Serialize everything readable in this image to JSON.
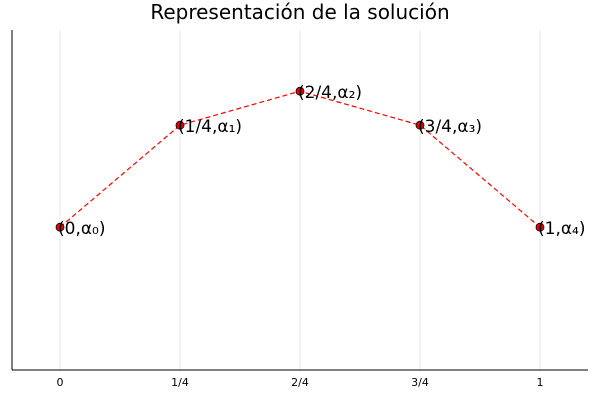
{
  "chart_data": {
    "type": "line",
    "title": "Representación de la solución",
    "xlabel": "",
    "ylabel": "",
    "x_ticks": [
      "0",
      "1/4",
      "2/4",
      "3/4",
      "1"
    ],
    "x": [
      0,
      0.25,
      0.5,
      0.75,
      1
    ],
    "y": [
      0.42,
      0.72,
      0.82,
      0.72,
      0.42
    ],
    "xlim": [
      -0.1,
      1.1
    ],
    "ylim": [
      0,
      1
    ],
    "grid": true,
    "legend": "none",
    "point_labels": [
      "(0,α₀)",
      "(1/4,α₁)",
      "(2/4,α₂)",
      "(3/4,α₃)",
      "(1,α₄)"
    ],
    "colors": {
      "line": "#ff0000",
      "marker": "#e60000"
    }
  }
}
